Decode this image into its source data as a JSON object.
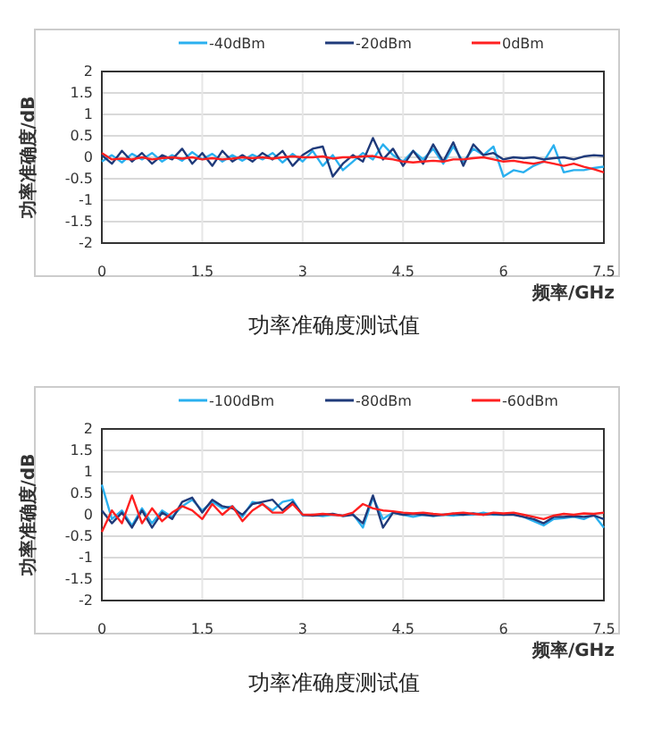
{
  "chart_data": [
    {
      "type": "line",
      "title": "功率准确度测试值",
      "xlabel": "频率/GHz",
      "ylabel": "功率准确度/dB",
      "grid": true,
      "legend": "top",
      "line_style": "solid",
      "marker": "none",
      "x": [
        0,
        0.15,
        0.3,
        0.45,
        0.6,
        0.75,
        0.9,
        1.05,
        1.2,
        1.35,
        1.5,
        1.65,
        1.8,
        1.95,
        2.1,
        2.25,
        2.4,
        2.55,
        2.7,
        2.85,
        3,
        3.15,
        3.3,
        3.45,
        3.6,
        3.75,
        3.9,
        4.05,
        4.2,
        4.35,
        4.5,
        4.65,
        4.8,
        4.95,
        5.1,
        5.25,
        5.4,
        5.55,
        5.7,
        5.85,
        6,
        6.15,
        6.3,
        6.45,
        6.6,
        6.75,
        6.9,
        7.05,
        7.2,
        7.35,
        7.5
      ],
      "xlim": [
        0,
        7.5
      ],
      "xticks": [
        0,
        1.5,
        3,
        4.5,
        6,
        7.5
      ],
      "ylim": [
        -2,
        2
      ],
      "yticks": [
        -2,
        -1.5,
        -1,
        -0.5,
        0,
        0.5,
        1,
        1.5,
        2
      ],
      "series": [
        {
          "name": "-40dBm",
          "color": "#2ab0ef",
          "values": [
            -0.1,
            0.05,
            -0.12,
            0.08,
            -0.05,
            0.1,
            -0.1,
            0.05,
            -0.08,
            0.12,
            -0.05,
            0.08,
            -0.1,
            0.05,
            -0.08,
            0.06,
            -0.05,
            0.1,
            -0.12,
            0.08,
            -0.1,
            0.15,
            -0.2,
            0.05,
            -0.3,
            -0.1,
            0.1,
            -0.05,
            0.3,
            0.05,
            -0.1,
            0.15,
            -0.05,
            0.2,
            -0.15,
            0.25,
            -0.1,
            0.2,
            0.05,
            0.25,
            -0.45,
            -0.3,
            -0.35,
            -0.2,
            -0.1,
            0.28,
            -0.35,
            -0.3,
            -0.3,
            -0.25,
            -0.22
          ]
        },
        {
          "name": "-20dBm",
          "color": "#1f3a7a",
          "values": [
            0.05,
            -0.15,
            0.15,
            -0.1,
            0.1,
            -0.15,
            0.05,
            -0.05,
            0.2,
            -0.15,
            0.1,
            -0.2,
            0.15,
            -0.1,
            0.05,
            -0.1,
            0.1,
            -0.05,
            0.15,
            -0.2,
            0.05,
            0.2,
            0.25,
            -0.45,
            -0.15,
            0.05,
            -0.1,
            0.45,
            -0.05,
            0.2,
            -0.2,
            0.15,
            -0.15,
            0.3,
            -0.1,
            0.35,
            -0.2,
            0.3,
            0.05,
            0.1,
            -0.05,
            0,
            -0.02,
            0,
            -0.05,
            -0.02,
            0,
            -0.05,
            0.02,
            0.05,
            0.03
          ]
        },
        {
          "name": "0dBm",
          "color": "#ff2020",
          "values": [
            0.1,
            -0.05,
            -0.03,
            -0.05,
            0,
            -0.05,
            -0.02,
            0,
            -0.03,
            0,
            -0.05,
            -0.02,
            -0.05,
            -0.03,
            0,
            -0.02,
            0,
            -0.03,
            0,
            0.02,
            0,
            0,
            0.02,
            -0.03,
            0,
            0,
            0.02,
            0.03,
            -0.02,
            -0.05,
            -0.1,
            -0.12,
            -0.1,
            -0.08,
            -0.1,
            -0.05,
            -0.05,
            -0.02,
            0,
            -0.05,
            -0.1,
            -0.08,
            -0.12,
            -0.15,
            -0.1,
            -0.15,
            -0.2,
            -0.15,
            -0.22,
            -0.28,
            -0.35
          ]
        }
      ]
    },
    {
      "type": "line",
      "title": "功率准确度测试值",
      "xlabel": "频率/GHz",
      "ylabel": "功率准确度/dB",
      "grid": true,
      "legend": "top",
      "line_style": "solid",
      "marker": "none",
      "x": [
        0,
        0.15,
        0.3,
        0.45,
        0.6,
        0.75,
        0.9,
        1.05,
        1.2,
        1.35,
        1.5,
        1.65,
        1.8,
        1.95,
        2.1,
        2.25,
        2.4,
        2.55,
        2.7,
        2.85,
        3,
        3.15,
        3.3,
        3.45,
        3.6,
        3.75,
        3.9,
        4.05,
        4.2,
        4.35,
        4.5,
        4.65,
        4.8,
        4.95,
        5.1,
        5.25,
        5.4,
        5.55,
        5.7,
        5.85,
        6,
        6.15,
        6.3,
        6.45,
        6.6,
        6.75,
        6.9,
        7.05,
        7.2,
        7.35,
        7.5
      ],
      "xlim": [
        0,
        7.5
      ],
      "xticks": [
        0,
        1.5,
        3,
        4.5,
        6,
        7.5
      ],
      "ylim": [
        -2,
        2
      ],
      "yticks": [
        -2,
        -1.5,
        -1,
        -0.5,
        0,
        0.5,
        1,
        1.5,
        2
      ],
      "series": [
        {
          "name": "-100dBm",
          "color": "#2ab0ef",
          "values": [
            0.7,
            -0.1,
            0.1,
            -0.25,
            0.15,
            -0.2,
            0.1,
            -0.05,
            0.2,
            0.35,
            0.1,
            0.3,
            0.15,
            0.2,
            -0.05,
            0.3,
            0.25,
            0.1,
            0.3,
            0.35,
            -0.02,
            0,
            -0.03,
            0,
            -0.02,
            0.02,
            -0.3,
            0.4,
            -0.1,
            0.05,
            0,
            -0.05,
            0,
            -0.03,
            0,
            -0.02,
            0,
            0,
            0.05,
            0,
            0,
            0.02,
            -0.05,
            -0.15,
            -0.25,
            -0.1,
            -0.08,
            -0.05,
            -0.1,
            0,
            -0.3
          ]
        },
        {
          "name": "-80dBm",
          "color": "#1f3a7a",
          "values": [
            0.1,
            -0.2,
            0.05,
            -0.3,
            0.1,
            -0.3,
            0.05,
            -0.1,
            0.3,
            0.4,
            0.05,
            0.35,
            0.2,
            0.15,
            0,
            0.25,
            0.3,
            0.35,
            0.1,
            0.3,
            0,
            -0.02,
            0,
            0.02,
            -0.03,
            0,
            -0.2,
            0.45,
            -0.3,
            0.05,
            0,
            0.02,
            0,
            -0.02,
            0,
            0.02,
            0,
            0.03,
            0,
            0.02,
            0,
            0,
            -0.05,
            -0.1,
            -0.2,
            -0.05,
            -0.05,
            -0.03,
            -0.05,
            -0.02,
            -0.1
          ]
        },
        {
          "name": "-60dBm",
          "color": "#ff2020",
          "values": [
            -0.4,
            0.1,
            -0.2,
            0.45,
            -0.2,
            0.15,
            -0.15,
            0.05,
            0.2,
            0.1,
            -0.1,
            0.25,
            0,
            0.2,
            -0.15,
            0.1,
            0.25,
            0.05,
            0.05,
            0.25,
            0,
            0,
            0.02,
            0,
            -0.02,
            0.05,
            0.25,
            0.15,
            0.1,
            0.08,
            0.05,
            0.03,
            0.05,
            0.02,
            0,
            0.03,
            0.05,
            0.02,
            0,
            0.05,
            0.03,
            0.05,
            0,
            -0.05,
            -0.1,
            -0.02,
            0.02,
            0,
            0.03,
            0.02,
            0.05
          ]
        }
      ]
    }
  ]
}
